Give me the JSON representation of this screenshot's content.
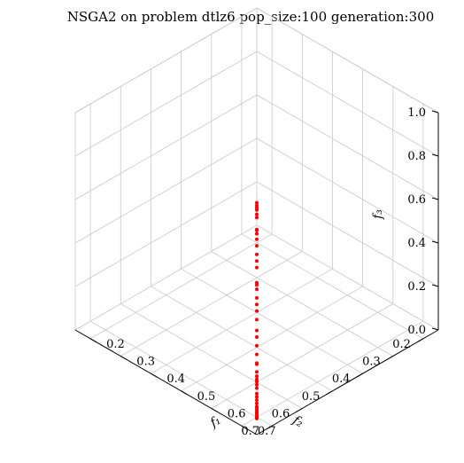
{
  "chart_data": {
    "type": "scatter",
    "projection": "3d",
    "title": "NSGA2 on problem dtlz6 pop_size:100 generation:300",
    "xlabel": "f₁",
    "ylabel": "f₂",
    "zlabel": "f₃",
    "xlim": [
      0.15,
      0.75
    ],
    "ylim": [
      0.15,
      0.75
    ],
    "zlim": [
      0.0,
      1.0
    ],
    "xticks": [
      0.2,
      0.3,
      0.4,
      0.5,
      0.6,
      0.7
    ],
    "yticks": [
      0.2,
      0.3,
      0.4,
      0.5,
      0.6,
      0.7
    ],
    "zticks": [
      0.0,
      0.2,
      0.4,
      0.6,
      0.8,
      1.0
    ],
    "xtick_labels": [
      "0.2",
      "0.3",
      "0.4",
      "0.5",
      "0.6",
      "0.7"
    ],
    "ytick_labels": [
      "0.2",
      "0.3",
      "0.4",
      "0.5",
      "0.6",
      "0.7"
    ],
    "ztick_labels": [
      "0.0",
      "0.2",
      "0.4",
      "0.6",
      "0.8",
      "1.0"
    ],
    "grid": true,
    "marker_color": "#ff0000",
    "series": [
      {
        "x": [
          0.707,
          0.707,
          0.707,
          0.707,
          0.707,
          0.707,
          0.707,
          0.707,
          0.707,
          0.707,
          0.707,
          0.707,
          0.707,
          0.707,
          0.707,
          0.707,
          0.707,
          0.707,
          0.707,
          0.707,
          0.707,
          0.707,
          0.707,
          0.707,
          0.707,
          0.707,
          0.707,
          0.707,
          0.707,
          0.707,
          0.707,
          0.707,
          0.707,
          0.707,
          0.707,
          0.707,
          0.707,
          0.707,
          0.707,
          0.707,
          0.707,
          0.707,
          0.707,
          0.707,
          0.707,
          0.707
        ],
        "y": [
          0.707,
          0.707,
          0.707,
          0.707,
          0.707,
          0.707,
          0.707,
          0.707,
          0.707,
          0.707,
          0.707,
          0.707,
          0.707,
          0.707,
          0.707,
          0.707,
          0.707,
          0.707,
          0.707,
          0.707,
          0.707,
          0.707,
          0.707,
          0.707,
          0.707,
          0.707,
          0.707,
          0.707,
          0.707,
          0.707,
          0.707,
          0.707,
          0.707,
          0.707,
          0.707,
          0.707,
          0.707,
          0.707,
          0.707,
          0.707,
          0.707,
          0.707,
          0.707,
          0.707,
          0.707,
          0.707
        ],
        "z": [
          0.005,
          0.012,
          0.02,
          0.028,
          0.035,
          0.045,
          0.06,
          0.075,
          0.09,
          0.12,
          0.16,
          0.2,
          0.22,
          0.3,
          0.34,
          0.38,
          0.46,
          0.5,
          0.53,
          0.56,
          0.6,
          0.62,
          0.63,
          0.7,
          0.73,
          0.76,
          0.8,
          0.83,
          0.855,
          0.87,
          0.875,
          0.93,
          0.945,
          0.965,
          0.975,
          0.985,
          0.998,
          0.145,
          0.175,
          0.185,
          0.255,
          0.26,
          0.41,
          0.035,
          0.055,
          0.105
        ],
        "color": "#ff0000"
      }
    ]
  }
}
